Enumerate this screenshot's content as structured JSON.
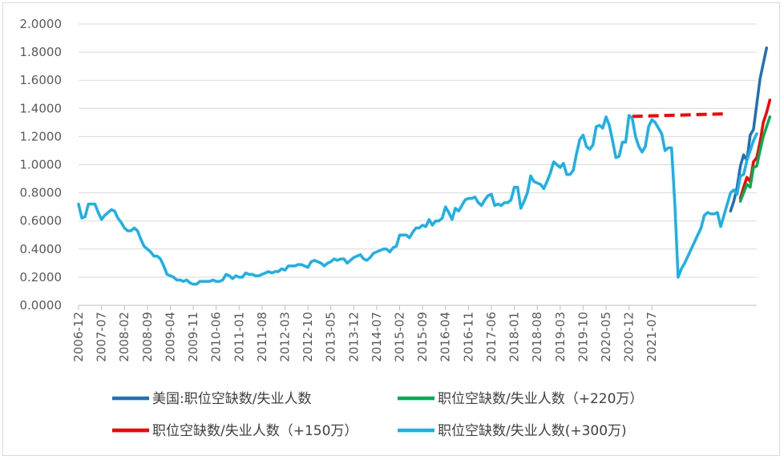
{
  "chart_data": {
    "type": "line",
    "title": "",
    "xlabel": "",
    "ylabel": "",
    "ylim": [
      0,
      2.0
    ],
    "y_ticks": [
      "0.0000",
      "0.2000",
      "0.4000",
      "0.6000",
      "0.8000",
      "1.0000",
      "1.2000",
      "1.4000",
      "1.6000",
      "1.8000",
      "2.0000"
    ],
    "x_tick_labels": [
      "2006-12",
      "2007-07",
      "2008-02",
      "2008-09",
      "2009-04",
      "2009-11",
      "2010-06",
      "2011-01",
      "2011-08",
      "2012-03",
      "2012-10",
      "2013-05",
      "2013-12",
      "2014-07",
      "2015-02",
      "2015-09",
      "2016-04",
      "2016-11",
      "2017-06",
      "2018-01",
      "2018-08",
      "2019-03",
      "2019-10",
      "2020-05",
      "2020-12",
      "2021-07"
    ],
    "grid": "horizontal",
    "legend_position": "bottom",
    "base_series": {
      "name": "职位空缺数/失业人数(+300万)",
      "color": "#1ab0e8",
      "values": [
        0.72,
        0.62,
        0.63,
        0.72,
        0.72,
        0.72,
        0.66,
        0.61,
        0.64,
        0.66,
        0.68,
        0.67,
        0.62,
        0.59,
        0.55,
        0.53,
        0.53,
        0.55,
        0.53,
        0.47,
        0.42,
        0.4,
        0.38,
        0.35,
        0.35,
        0.33,
        0.28,
        0.22,
        0.21,
        0.2,
        0.18,
        0.18,
        0.17,
        0.18,
        0.16,
        0.15,
        0.15,
        0.17,
        0.17,
        0.17,
        0.17,
        0.18,
        0.17,
        0.17,
        0.18,
        0.22,
        0.21,
        0.19,
        0.21,
        0.2,
        0.2,
        0.23,
        0.22,
        0.22,
        0.21,
        0.21,
        0.22,
        0.23,
        0.24,
        0.23,
        0.24,
        0.24,
        0.26,
        0.25,
        0.28,
        0.28,
        0.28,
        0.29,
        0.29,
        0.28,
        0.27,
        0.31,
        0.32,
        0.31,
        0.3,
        0.28,
        0.3,
        0.31,
        0.33,
        0.32,
        0.33,
        0.33,
        0.3,
        0.32,
        0.34,
        0.35,
        0.36,
        0.33,
        0.32,
        0.34,
        0.37,
        0.38,
        0.39,
        0.4,
        0.4,
        0.38,
        0.41,
        0.42,
        0.5,
        0.5,
        0.5,
        0.48,
        0.52,
        0.55,
        0.55,
        0.57,
        0.56,
        0.61,
        0.57,
        0.6,
        0.6,
        0.62,
        0.7,
        0.66,
        0.61,
        0.69,
        0.67,
        0.71,
        0.75,
        0.76,
        0.76,
        0.77,
        0.73,
        0.71,
        0.75,
        0.78,
        0.79,
        0.71,
        0.72,
        0.71,
        0.73,
        0.73,
        0.75,
        0.84,
        0.84,
        0.69,
        0.74,
        0.8,
        0.92,
        0.88,
        0.87,
        0.86,
        0.83,
        0.88,
        0.94,
        1.02,
        1.0,
        0.98,
        1.01,
        0.93,
        0.93,
        0.96,
        1.08,
        1.18,
        1.21,
        1.13,
        1.11,
        1.14,
        1.27,
        1.28,
        1.26,
        1.34,
        1.28,
        1.17,
        1.05,
        1.06,
        1.16,
        1.16,
        1.35,
        1.33,
        1.2,
        1.13,
        1.09,
        1.13,
        1.27,
        1.32,
        1.3,
        1.26,
        1.22,
        1.1,
        1.12,
        1.12,
        0.72,
        0.2,
        0.26,
        0.3,
        0.35,
        0.4,
        0.45,
        0.5,
        0.55,
        0.64,
        0.66,
        0.65,
        0.65,
        0.66,
        0.56,
        0.64,
        0.72,
        0.8,
        0.82,
        0.79,
        0.92,
        0.93,
        1.03,
        1.1,
        1.17,
        1.22
      ]
    },
    "overlays": [
      {
        "name": "职位空缺数/失业人数（+220万）",
        "color": "#00b050",
        "start_index": 202,
        "values": [
          0.74,
          0.8,
          0.86,
          0.84,
          0.98,
          0.99,
          1.1,
          1.2,
          1.27,
          1.34
        ]
      },
      {
        "name": "职位空缺数/失业人数（+150万）",
        "color": "#ff0000",
        "start_index": 202,
        "values": [
          0.76,
          0.84,
          0.91,
          0.88,
          1.02,
          1.05,
          1.16,
          1.3,
          1.37,
          1.46
        ]
      },
      {
        "name": "美国:职位空缺数/失业人数",
        "color": "#1f70b5",
        "start_index": 199,
        "values": [
          0.67,
          0.74,
          0.84,
          0.99,
          1.07,
          1.03,
          1.21,
          1.25,
          1.43,
          1.61,
          1.72,
          1.83
        ]
      }
    ],
    "dashed_line": {
      "color": "#ff0000",
      "start_index": 169,
      "end_index": 198,
      "values": [
        1.343,
        1.362
      ]
    },
    "legend": [
      {
        "name": "美国:职位空缺数/失业人数",
        "color": "#1f70b5"
      },
      {
        "name": "职位空缺数/失业人数（+220万）",
        "color": "#00b050"
      },
      {
        "name": "职位空缺数/失业人数（+150万）",
        "color": "#ff0000"
      },
      {
        "name": "职位空缺数/失业人数(+300万)",
        "color": "#1ab0e8"
      }
    ]
  }
}
